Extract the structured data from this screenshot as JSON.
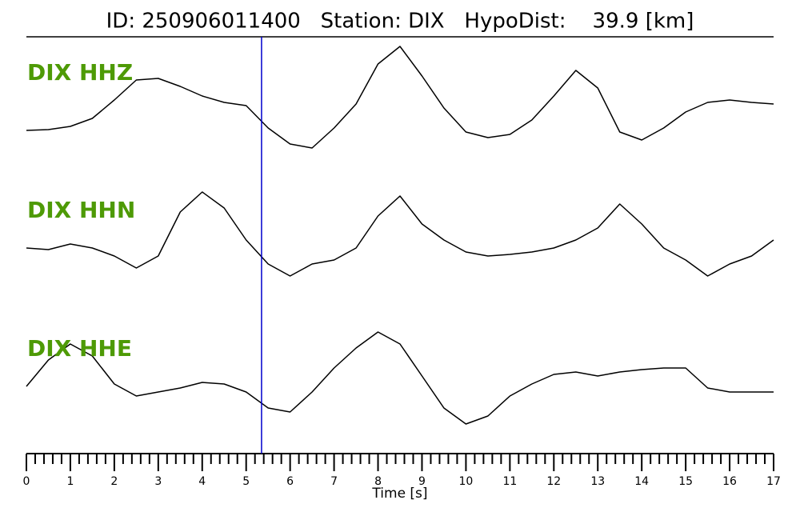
{
  "chart_data": {
    "type": "line",
    "title": "ID: 250906011400   Station: DIX   HypoDist:    39.9 [km]",
    "xlabel": "Time [s]",
    "xlim": [
      0,
      17
    ],
    "xticks": [
      0,
      1,
      2,
      3,
      4,
      5,
      6,
      7,
      8,
      9,
      10,
      11,
      12,
      13,
      14,
      15,
      16,
      17
    ],
    "xminorticks": [
      0.2,
      0.4,
      0.6,
      0.8,
      1.2,
      1.4,
      1.6,
      1.8,
      2.2,
      2.4,
      2.6,
      2.8,
      3.2,
      3.4,
      3.6,
      3.8,
      4.2,
      4.4,
      4.6,
      4.8,
      5.2,
      5.4,
      5.6,
      5.8,
      6.2,
      6.4,
      6.6,
      6.8,
      7.2,
      7.4,
      7.6,
      7.8,
      8.2,
      8.4,
      8.6,
      8.8,
      9.2,
      9.4,
      9.6,
      9.8,
      10.2,
      10.4,
      10.6,
      10.8,
      11.2,
      11.4,
      11.6,
      11.8,
      12.2,
      12.4,
      12.6,
      12.8,
      13.2,
      13.4,
      13.6,
      13.8,
      14.2,
      14.4,
      14.6,
      14.8,
      15.2,
      15.4,
      15.6,
      15.8,
      16.2,
      16.4,
      16.6,
      16.8
    ],
    "pick_time": 5.35,
    "pick_color": "#0000cc",
    "ylim": [
      -70,
      70
    ],
    "x": [
      0,
      0.5,
      1,
      1.5,
      2,
      2.5,
      3,
      3.5,
      4,
      4.5,
      5,
      5.5,
      6,
      6.5,
      7,
      7.5,
      8,
      8.5,
      9,
      9.5,
      10,
      10.5,
      11,
      11.5,
      12,
      12.5,
      13,
      13.5,
      14,
      14.5,
      15,
      15.5,
      16,
      16.5,
      17
    ],
    "series": [
      {
        "name": "DIX HHZ",
        "color": "#000000",
        "values": [
          -23,
          -22,
          -18,
          -8,
          15,
          40,
          42,
          32,
          20,
          12,
          8,
          -20,
          -40,
          -45,
          -20,
          10,
          60,
          82,
          45,
          5,
          -25,
          -32,
          -28,
          -10,
          20,
          52,
          30,
          -25,
          -35,
          -20,
          0,
          12,
          15,
          12,
          10
        ]
      },
      {
        "name": "DIX HHN",
        "color": "#000000",
        "values": [
          0,
          -2,
          5,
          0,
          -10,
          -25,
          -10,
          45,
          70,
          50,
          10,
          -20,
          -35,
          -20,
          -15,
          0,
          40,
          65,
          30,
          10,
          -5,
          -10,
          -8,
          -5,
          0,
          10,
          25,
          55,
          30,
          0,
          -15,
          -35,
          -20,
          -10,
          10
        ]
      },
      {
        "name": "DIX HHE",
        "color": "#000000",
        "values": [
          -3,
          30,
          50,
          35,
          0,
          -15,
          -10,
          -5,
          2,
          0,
          -10,
          -30,
          -35,
          -10,
          20,
          45,
          65,
          50,
          10,
          -30,
          -50,
          -40,
          -15,
          0,
          12,
          15,
          10,
          15,
          18,
          20,
          20,
          -5,
          -10,
          -10,
          -10
        ]
      }
    ]
  }
}
